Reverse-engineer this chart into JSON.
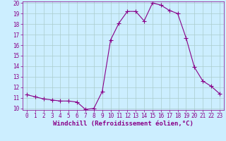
{
  "x": [
    0,
    1,
    2,
    3,
    4,
    5,
    6,
    7,
    8,
    9,
    10,
    11,
    12,
    13,
    14,
    15,
    16,
    17,
    18,
    19,
    20,
    21,
    22,
    23
  ],
  "y": [
    11.3,
    11.1,
    10.9,
    10.8,
    10.7,
    10.7,
    10.6,
    9.9,
    10.0,
    11.6,
    16.5,
    18.1,
    19.2,
    19.2,
    18.3,
    20.0,
    19.8,
    19.3,
    19.0,
    16.7,
    13.9,
    12.6,
    12.1,
    11.4
  ],
  "line_color": "#880088",
  "marker": "+",
  "marker_size": 4,
  "marker_lw": 0.8,
  "bg_color": "#cceeff",
  "grid_color": "#aacccc",
  "xlabel": "Windchill (Refroidissement éolien,°C)",
  "ylim": [
    10,
    20
  ],
  "xlim": [
    -0.5,
    23.5
  ],
  "yticks": [
    10,
    11,
    12,
    13,
    14,
    15,
    16,
    17,
    18,
    19,
    20
  ],
  "xticks": [
    0,
    1,
    2,
    3,
    4,
    5,
    6,
    7,
    8,
    9,
    10,
    11,
    12,
    13,
    14,
    15,
    16,
    17,
    18,
    19,
    20,
    21,
    22,
    23
  ],
  "tick_color": "#880088",
  "label_color": "#880088",
  "tick_fontsize": 5.5,
  "xlabel_fontsize": 6.5,
  "linewidth": 0.8
}
